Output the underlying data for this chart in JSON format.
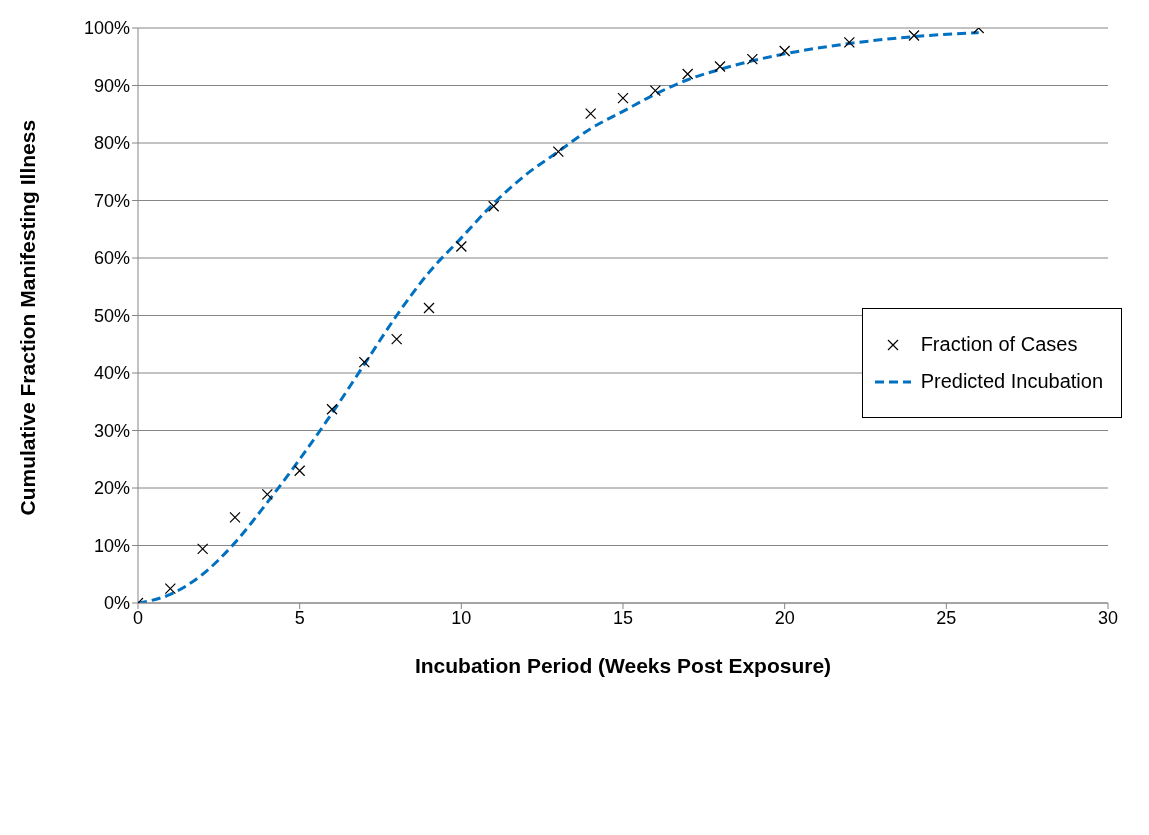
{
  "chart_data": {
    "type": "scatter",
    "xlabel": "Incubation Period (Weeks Post Exposure)",
    "ylabel": "Cumulative Fraction Manifesting Illness",
    "xlim": [
      0,
      30
    ],
    "xticks": [
      0,
      5,
      10,
      15,
      20,
      25,
      30
    ],
    "ylim": [
      0,
      100
    ],
    "yticks": [
      {
        "value": 0,
        "label": "0%"
      },
      {
        "value": 10,
        "label": "10%"
      },
      {
        "value": 20,
        "label": "20%"
      },
      {
        "value": 30,
        "label": "30%"
      },
      {
        "value": 40,
        "label": "40%"
      },
      {
        "value": 50,
        "label": "50%"
      },
      {
        "value": 60,
        "label": "60%"
      },
      {
        "value": 70,
        "label": "70%"
      },
      {
        "value": 80,
        "label": "80%"
      },
      {
        "value": 90,
        "label": "90%"
      },
      {
        "value": 100,
        "label": "100%"
      }
    ],
    "grid": "y",
    "legend": "right",
    "series": [
      {
        "name": "Fraction of Cases",
        "type": "scatter",
        "color": "#000000",
        "marker": "cross",
        "x": [
          0,
          1,
          2,
          3,
          4,
          5,
          6,
          7,
          8,
          9,
          10,
          11,
          13,
          14,
          15,
          16,
          17,
          18,
          19,
          20,
          22,
          24,
          26
        ],
        "values": [
          0,
          2.5,
          9.4,
          14.9,
          18.9,
          23,
          33.7,
          41.9,
          45.9,
          51.3,
          62,
          69,
          78.5,
          85.1,
          87.8,
          89.1,
          92,
          93.3,
          94.6,
          96,
          97.5,
          98.7,
          100
        ]
      },
      {
        "name": "Predicted Incubation",
        "type": "line",
        "color": "#0070c0",
        "marker": "none",
        "line_style": "dashed",
        "x": [
          0,
          1,
          2,
          3,
          4,
          5,
          6,
          7,
          8,
          9,
          10,
          11,
          12,
          13,
          14,
          15,
          16,
          17,
          18,
          19,
          20,
          22,
          24,
          26
        ],
        "values": [
          0,
          1.5,
          5,
          10.5,
          17.5,
          25,
          33,
          41.5,
          50,
          57.5,
          63.5,
          69.5,
          74.5,
          78.5,
          82.5,
          85.5,
          88.5,
          91,
          92.8,
          94.3,
          95.5,
          97.3,
          98.5,
          99.2
        ]
      }
    ]
  }
}
